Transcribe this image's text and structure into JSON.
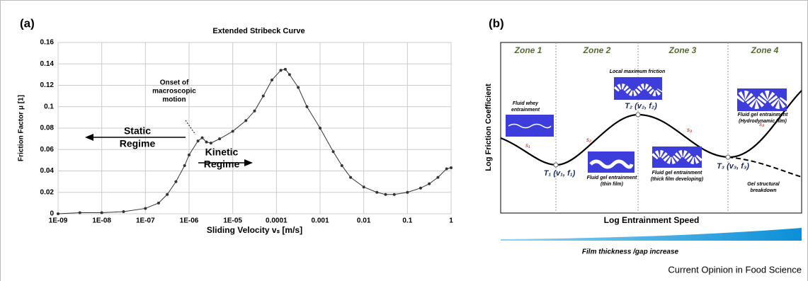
{
  "chart_data": {
    "type": "line",
    "title": "Extended Stribeck Curve",
    "panel_label": "(a)",
    "x_label": "Sliding Velocity vₛ [m/s]",
    "y_label": "Friction Factor μ [1]",
    "x_scale": "log",
    "grid": true,
    "xlim": [
      1e-09,
      1
    ],
    "xticks": [
      {
        "value": 1e-09,
        "label": "1E-09"
      },
      {
        "value": 1e-08,
        "label": "1E-08"
      },
      {
        "value": 1e-07,
        "label": "1E-07"
      },
      {
        "value": 1e-06,
        "label": "1E-06"
      },
      {
        "value": 1e-05,
        "label": "1E-05"
      },
      0.0001,
      0.001,
      0.01,
      0.1,
      1
    ],
    "ylim": [
      0,
      0.16
    ],
    "yticks": [
      0,
      0.02,
      0.04,
      0.06,
      0.08,
      0.1,
      0.12,
      0.14,
      0.16
    ],
    "x": [
      1e-09,
      3.16e-09,
      1e-08,
      3.16e-08,
      1e-07,
      2e-07,
      3.16e-07,
      5e-07,
      7.9e-07,
      1e-06,
      1.6e-06,
      2e-06,
      2.5e-06,
      3.16e-06,
      5e-06,
      1e-05,
      2e-05,
      3.16e-05,
      5e-05,
      7.9e-05,
      0.000126,
      0.00016,
      0.0002,
      0.000316,
      0.0005,
      0.001,
      0.002,
      0.00316,
      0.005,
      0.01,
      0.02,
      0.0316,
      0.05,
      0.1,
      0.2,
      0.316,
      0.5,
      0.79,
      1
    ],
    "series": [
      {
        "name": "Friction factor",
        "color": "#333333",
        "values": [
          0.0,
          0.001,
          0.001,
          0.002,
          0.005,
          0.01,
          0.018,
          0.03,
          0.045,
          0.055,
          0.068,
          0.071,
          0.067,
          0.066,
          0.07,
          0.077,
          0.087,
          0.096,
          0.11,
          0.125,
          0.134,
          0.135,
          0.13,
          0.118,
          0.1,
          0.08,
          0.058,
          0.045,
          0.034,
          0.025,
          0.02,
          0.018,
          0.018,
          0.02,
          0.024,
          0.028,
          0.034,
          0.042,
          0.043
        ]
      }
    ],
    "annotations": {
      "onset": [
        "Onset of",
        "macroscopic",
        "motion"
      ],
      "static": [
        "Static",
        "Regime"
      ],
      "kinetic": [
        "Kinetic",
        "Regime"
      ]
    }
  },
  "diagram": {
    "panel_label": "(b)",
    "zones": [
      "Zone 1",
      "Zone 2",
      "Zone 3",
      "Zone 4"
    ],
    "y_label": "Log Friction Coefficient",
    "x_label": "Log Entrainment Speed",
    "points": [
      "T₁ (v₁, f₁)",
      "T₂ (v₂, f₂)",
      "T₃ (v₃, f₃)"
    ],
    "slopes": [
      "s₁",
      "s₂",
      "s₃",
      "s₄"
    ],
    "notes": {
      "whey": [
        "Fluid whey",
        "entrainment"
      ],
      "local_max": "Local maximum friction",
      "thin": [
        "Fluid gel entrainment",
        "(thin film)"
      ],
      "thick": [
        "Fluid gel entrainment",
        "(thick film developing)"
      ],
      "hydro": [
        "Fluid gel entrainment",
        "(Hydrodynamic film)"
      ],
      "breakdown": [
        "Gel structural",
        "breakdown"
      ]
    },
    "gap_label": "Film thickness /gap increase"
  },
  "footer": "Current Opinion in Food Science"
}
